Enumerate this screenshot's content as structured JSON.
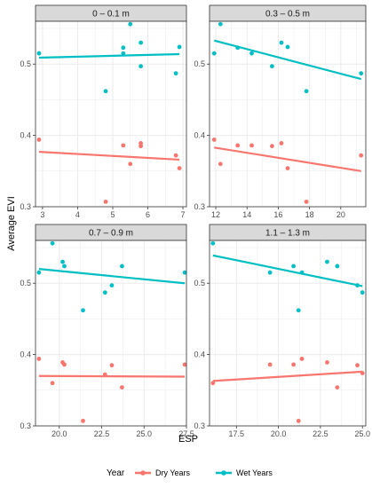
{
  "colors": {
    "dry": "#F8766D",
    "wet": "#00BFC4",
    "strip_bg": "#D9D9D9",
    "grid": "#EBEBEB",
    "border": "#333333"
  },
  "chart_data": {
    "type": "scatter",
    "xlabel": "ESP",
    "ylabel": "Average EVI",
    "ylim": [
      0.3,
      0.56
    ],
    "y_ticks": [
      "0.3",
      "0.4",
      "0.5"
    ],
    "legend": {
      "title": "Year",
      "placement": "bottom",
      "entries": [
        "Dry Years",
        "Wet Years"
      ]
    },
    "panels": [
      {
        "label": "0 – 0.1 m",
        "xlim": [
          2.8,
          7.1
        ],
        "x_ticks": [
          "3",
          "4",
          "5",
          "6",
          "7"
        ],
        "series": [
          {
            "name": "Dry Years",
            "color": "#F8766D",
            "points": [
              [
                2.9,
                0.394
              ],
              [
                4.8,
                0.307
              ],
              [
                5.3,
                0.386
              ],
              [
                5.5,
                0.36
              ],
              [
                5.8,
                0.385
              ],
              [
                5.8,
                0.389
              ],
              [
                6.8,
                0.372
              ],
              [
                6.9,
                0.354
              ]
            ],
            "fit": [
              [
                2.9,
                0.377
              ],
              [
                6.9,
                0.366
              ]
            ]
          },
          {
            "name": "Wet Years",
            "color": "#00BFC4",
            "points": [
              [
                2.9,
                0.515
              ],
              [
                4.8,
                0.462
              ],
              [
                5.3,
                0.523
              ],
              [
                5.3,
                0.515
              ],
              [
                5.5,
                0.556
              ],
              [
                5.8,
                0.53
              ],
              [
                5.8,
                0.497
              ],
              [
                6.8,
                0.487
              ],
              [
                6.9,
                0.524
              ]
            ],
            "fit": [
              [
                2.9,
                0.509
              ],
              [
                6.9,
                0.514
              ]
            ]
          }
        ]
      },
      {
        "label": "0.3 – 0.5 m",
        "xlim": [
          11.6,
          21.6
        ],
        "x_ticks": [
          "12",
          "14",
          "16",
          "18",
          "20"
        ],
        "series": [
          {
            "name": "Dry Years",
            "color": "#F8766D",
            "points": [
              [
                11.9,
                0.394
              ],
              [
                12.3,
                0.36
              ],
              [
                13.4,
                0.386
              ],
              [
                14.3,
                0.386
              ],
              [
                15.6,
                0.385
              ],
              [
                16.2,
                0.389
              ],
              [
                16.6,
                0.354
              ],
              [
                17.8,
                0.307
              ],
              [
                21.3,
                0.372
              ]
            ],
            "fit": [
              [
                11.9,
                0.383
              ],
              [
                21.3,
                0.35
              ]
            ]
          },
          {
            "name": "Wet Years",
            "color": "#00BFC4",
            "points": [
              [
                11.9,
                0.515
              ],
              [
                12.3,
                0.556
              ],
              [
                13.4,
                0.523
              ],
              [
                14.3,
                0.515
              ],
              [
                15.6,
                0.497
              ],
              [
                16.2,
                0.53
              ],
              [
                16.6,
                0.524
              ],
              [
                17.8,
                0.462
              ],
              [
                21.3,
                0.487
              ]
            ],
            "fit": [
              [
                11.9,
                0.533
              ],
              [
                21.3,
                0.479
              ]
            ]
          }
        ]
      },
      {
        "label": "0.7 – 0.9 m",
        "xlim": [
          18.6,
          27.5
        ],
        "x_ticks": [
          "20.0",
          "22.5",
          "25.0",
          "27.5"
        ],
        "series": [
          {
            "name": "Dry Years",
            "color": "#F8766D",
            "points": [
              [
                18.8,
                0.394
              ],
              [
                19.6,
                0.36
              ],
              [
                20.2,
                0.389
              ],
              [
                20.3,
                0.386
              ],
              [
                21.4,
                0.307
              ],
              [
                22.7,
                0.372
              ],
              [
                23.1,
                0.385
              ],
              [
                23.7,
                0.354
              ],
              [
                27.4,
                0.386
              ]
            ],
            "fit": [
              [
                18.8,
                0.37
              ],
              [
                27.4,
                0.369
              ]
            ]
          },
          {
            "name": "Wet Years",
            "color": "#00BFC4",
            "points": [
              [
                18.8,
                0.515
              ],
              [
                19.6,
                0.556
              ],
              [
                20.2,
                0.53
              ],
              [
                20.3,
                0.524
              ],
              [
                21.4,
                0.462
              ],
              [
                22.7,
                0.487
              ],
              [
                23.1,
                0.497
              ],
              [
                23.7,
                0.524
              ],
              [
                27.4,
                0.515
              ]
            ],
            "fit": [
              [
                18.8,
                0.52
              ],
              [
                27.4,
                0.5
              ]
            ]
          }
        ]
      },
      {
        "label": "1.1 – 1.3 m",
        "xlim": [
          15.9,
          25.2
        ],
        "x_ticks": [
          "17.5",
          "20.0",
          "22.5",
          "25.0"
        ],
        "series": [
          {
            "name": "Dry Years",
            "color": "#F8766D",
            "points": [
              [
                16.1,
                0.36
              ],
              [
                19.5,
                0.386
              ],
              [
                20.9,
                0.386
              ],
              [
                21.2,
                0.307
              ],
              [
                21.4,
                0.394
              ],
              [
                22.9,
                0.389
              ],
              [
                23.5,
                0.354
              ],
              [
                24.7,
                0.385
              ],
              [
                25.0,
                0.374
              ]
            ],
            "fit": [
              [
                16.1,
                0.363
              ],
              [
                25.0,
                0.376
              ]
            ]
          },
          {
            "name": "Wet Years",
            "color": "#00BFC4",
            "points": [
              [
                16.1,
                0.556
              ],
              [
                19.5,
                0.515
              ],
              [
                20.9,
                0.524
              ],
              [
                21.2,
                0.462
              ],
              [
                21.4,
                0.515
              ],
              [
                22.9,
                0.53
              ],
              [
                23.5,
                0.524
              ],
              [
                24.7,
                0.497
              ],
              [
                25.0,
                0.487
              ]
            ],
            "fit": [
              [
                16.1,
                0.539
              ],
              [
                25.0,
                0.496
              ]
            ]
          }
        ]
      }
    ]
  }
}
